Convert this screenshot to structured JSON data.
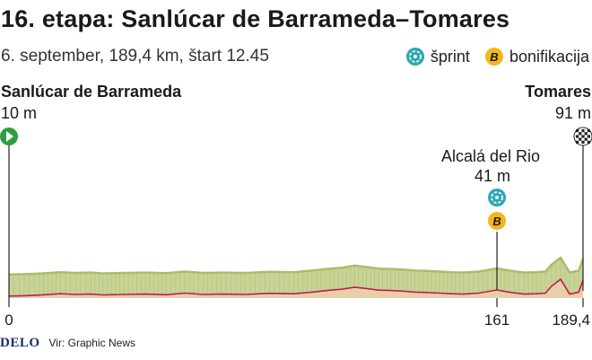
{
  "header": {
    "title": "16. etapa: Sanlúcar de Barrameda–Tomares",
    "subtitle": "6. september, 189,4 km, štart 12.45"
  },
  "legend": {
    "sprint_label": "šprint",
    "bonus_label": "bonifikacija",
    "bonus_letter": "B",
    "sprint_icon": "sprint-icon",
    "bonus_icon": "bonus-icon"
  },
  "points": {
    "start_name": "Sanlúcar de Barrameda",
    "start_elev": "10 m",
    "finish_name": "Tomares",
    "finish_elev": "91 m",
    "inter_name": "Alcalá del Rio",
    "inter_elev": "41 m"
  },
  "footer": {
    "brand": "DELO",
    "source": "Vir: Graphic News"
  },
  "colors": {
    "terrain_top": "#a9bd6c",
    "terrain_face": "#c8d495",
    "terrain_side": "#93a957",
    "base_fill": "#e6d0a8",
    "route_line": "#c2185b",
    "start_marker": "#2e9e44",
    "sprint": "#2aa8b4",
    "bonus": "#f3b71b"
  },
  "chart_data": {
    "type": "area",
    "title": "16. etapa: Sanlúcar de Barrameda–Tomares",
    "xlabel": "",
    "ylabel": "",
    "x_ticks": [
      "0",
      "161",
      "189,4"
    ],
    "x_tick_values": [
      0,
      161,
      189.4
    ],
    "xlim": [
      0,
      189.4
    ],
    "profile_km": [
      0,
      5,
      10,
      17,
      22,
      27,
      31,
      38,
      45,
      52,
      58,
      64,
      70,
      78,
      86,
      94,
      100,
      106,
      110,
      114,
      118,
      122,
      126,
      130,
      134,
      138,
      142,
      146,
      150,
      155,
      161,
      165,
      170,
      174,
      177,
      179,
      182,
      185,
      188,
      189.4
    ],
    "profile_elev_m": [
      10,
      12,
      15,
      22,
      18,
      20,
      16,
      18,
      20,
      17,
      25,
      18,
      20,
      18,
      24,
      22,
      30,
      40,
      45,
      55,
      48,
      40,
      38,
      35,
      30,
      28,
      25,
      22,
      20,
      25,
      41,
      30,
      20,
      22,
      25,
      60,
      95,
      20,
      30,
      91
    ],
    "markers": [
      {
        "km": 0,
        "name": "Sanlúcar de Barrameda",
        "elev": "10 m",
        "type": "start"
      },
      {
        "km": 161,
        "name": "Alcalá del Rio",
        "elev": "41 m",
        "type": "sprint+bonus"
      },
      {
        "km": 189.4,
        "name": "Tomares",
        "elev": "91 m",
        "type": "finish"
      }
    ]
  }
}
